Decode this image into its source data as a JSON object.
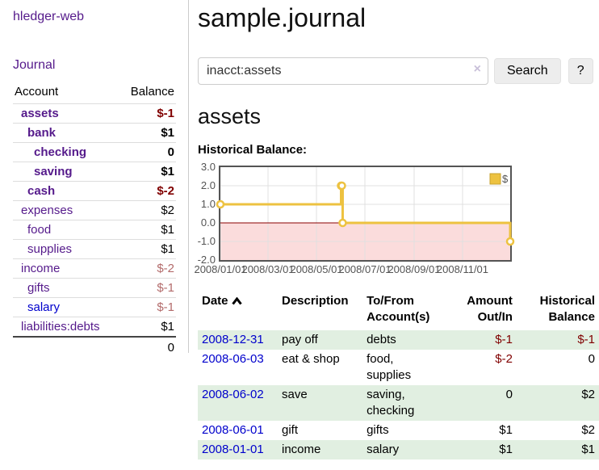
{
  "app": {
    "brand": "hledger-web"
  },
  "sidebar": {
    "journal_link": "Journal",
    "accounts_table": {
      "headers": {
        "account": "Account",
        "balance": "Balance"
      },
      "accounts": [
        {
          "name": "assets",
          "balance": "$-1",
          "depth": 1,
          "emphasis": true,
          "balance_tone": "negative-strong",
          "name_tone": "visited"
        },
        {
          "name": "bank",
          "balance": "$1",
          "depth": 2,
          "emphasis": true,
          "balance_tone": "normal-strong",
          "name_tone": "visited"
        },
        {
          "name": "checking",
          "balance": "0",
          "depth": 3,
          "emphasis": true,
          "balance_tone": "normal-strong",
          "name_tone": "visited"
        },
        {
          "name": "saving",
          "balance": "$1",
          "depth": 3,
          "emphasis": true,
          "balance_tone": "normal-strong",
          "name_tone": "visited"
        },
        {
          "name": "cash",
          "balance": "$-2",
          "depth": 2,
          "emphasis": true,
          "balance_tone": "negative-strong",
          "name_tone": "visited"
        },
        {
          "name": "expenses",
          "balance": "$2",
          "depth": 1,
          "emphasis": false,
          "balance_tone": "normal",
          "name_tone": "visited"
        },
        {
          "name": "food",
          "balance": "$1",
          "depth": 2,
          "emphasis": false,
          "balance_tone": "normal",
          "name_tone": "visited"
        },
        {
          "name": "supplies",
          "balance": "$1",
          "depth": 2,
          "emphasis": false,
          "balance_tone": "normal",
          "name_tone": "visited"
        },
        {
          "name": "income",
          "balance": "$-2",
          "depth": 1,
          "emphasis": false,
          "balance_tone": "negative-dim",
          "name_tone": "visited"
        },
        {
          "name": "gifts",
          "balance": "$-1",
          "depth": 2,
          "emphasis": false,
          "balance_tone": "negative-dim",
          "name_tone": "visited"
        },
        {
          "name": "salary",
          "balance": "$-1",
          "depth": 2,
          "emphasis": false,
          "balance_tone": "negative-dim",
          "name_tone": "unvisited"
        },
        {
          "name": "liabilities:debts",
          "balance": "$1",
          "depth": 1,
          "emphasis": false,
          "balance_tone": "normal",
          "name_tone": "visited"
        }
      ],
      "total": "0"
    }
  },
  "header": {
    "title": "sample.journal"
  },
  "search": {
    "value": "inacct:assets",
    "clear_label": "×",
    "search_button": "Search",
    "help_button": "?"
  },
  "account_view": {
    "heading": "assets",
    "chart_title": "Historical Balance:"
  },
  "chart_data": {
    "type": "line",
    "step": true,
    "series": [
      {
        "name": "$",
        "color": "#edc240",
        "points": [
          [
            "2008-01-01",
            1
          ],
          [
            "2008-06-01",
            2
          ],
          [
            "2008-06-02",
            2
          ],
          [
            "2008-06-03",
            0
          ],
          [
            "2008-12-31",
            -1
          ]
        ]
      }
    ],
    "x_range": [
      "2008-01-01",
      "2008-12-31"
    ],
    "ylim": [
      -2,
      3
    ],
    "y_ticks": [
      "3.0",
      "2.0",
      "1.0",
      "0.0",
      "-1.0",
      "-2.0"
    ],
    "x_tick_labels": [
      "2008/01/01",
      "2008/03/01",
      "2008/05/01",
      "2008/07/01",
      "2008/09/01",
      "2008/11/01"
    ],
    "legend": {
      "label": "$",
      "position": "top-right"
    },
    "grid": true,
    "negative_region_shaded": true,
    "colors": {
      "negative_region": "#fbdcdc",
      "zero_line": "#8b0000",
      "grid": "#e0e0e0",
      "border": "#545454"
    }
  },
  "register_table": {
    "headers": {
      "date": "Date",
      "description": "Description",
      "accounts": "To/From Account(s)",
      "amount": "Amount Out/In",
      "balance": "Historical Balance"
    },
    "rows": [
      {
        "date": "2008-12-31",
        "description": "pay off",
        "accounts": "debts",
        "amount": "$-1",
        "balance": "$-1",
        "amount_tone": "negative",
        "balance_tone": "negative",
        "shaded": true
      },
      {
        "date": "2008-06-03",
        "description": "eat & shop",
        "accounts": "food, supplies",
        "amount": "$-2",
        "balance": "0",
        "amount_tone": "negative",
        "balance_tone": "normal",
        "shaded": false
      },
      {
        "date": "2008-06-02",
        "description": "save",
        "accounts": "saving, checking",
        "amount": "0",
        "balance": "$2",
        "amount_tone": "normal",
        "balance_tone": "normal",
        "shaded": true
      },
      {
        "date": "2008-06-01",
        "description": "gift",
        "accounts": "gifts",
        "amount": "$1",
        "balance": "$2",
        "amount_tone": "normal",
        "balance_tone": "normal",
        "shaded": false
      },
      {
        "date": "2008-01-01",
        "description": "income",
        "accounts": "salary",
        "amount": "$1",
        "balance": "$1",
        "amount_tone": "normal",
        "balance_tone": "normal",
        "shaded": true
      }
    ]
  },
  "colors": {
    "accent_purple": "#551a8b",
    "link_blue": "#0000cc",
    "negative_strong": "#800000",
    "negative_dim": "#b36b6b",
    "row_green": "#e1efe1",
    "chart_line": "#edc240"
  }
}
